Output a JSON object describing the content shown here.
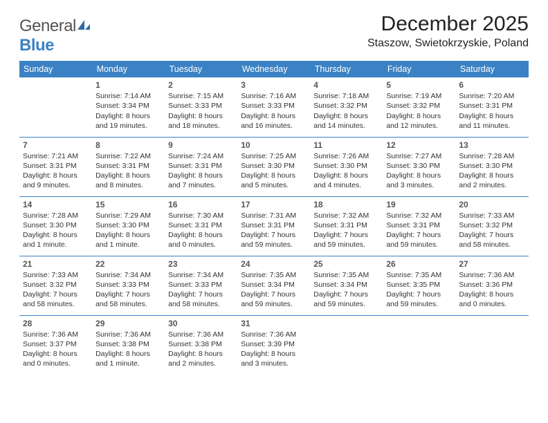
{
  "logo": {
    "text1": "General",
    "text2": "Blue"
  },
  "title": "December 2025",
  "location": "Staszow, Swietokrzyskie, Poland",
  "colors": {
    "accent": "#3b82c4",
    "bg": "#ffffff",
    "text": "#333333"
  },
  "day_headers": [
    "Sunday",
    "Monday",
    "Tuesday",
    "Wednesday",
    "Thursday",
    "Friday",
    "Saturday"
  ],
  "weeks": [
    [
      {
        "blank": true
      },
      {
        "day": "1",
        "sunrise": "Sunrise: 7:14 AM",
        "sunset": "Sunset: 3:34 PM",
        "dl1": "Daylight: 8 hours",
        "dl2": "and 19 minutes."
      },
      {
        "day": "2",
        "sunrise": "Sunrise: 7:15 AM",
        "sunset": "Sunset: 3:33 PM",
        "dl1": "Daylight: 8 hours",
        "dl2": "and 18 minutes."
      },
      {
        "day": "3",
        "sunrise": "Sunrise: 7:16 AM",
        "sunset": "Sunset: 3:33 PM",
        "dl1": "Daylight: 8 hours",
        "dl2": "and 16 minutes."
      },
      {
        "day": "4",
        "sunrise": "Sunrise: 7:18 AM",
        "sunset": "Sunset: 3:32 PM",
        "dl1": "Daylight: 8 hours",
        "dl2": "and 14 minutes."
      },
      {
        "day": "5",
        "sunrise": "Sunrise: 7:19 AM",
        "sunset": "Sunset: 3:32 PM",
        "dl1": "Daylight: 8 hours",
        "dl2": "and 12 minutes."
      },
      {
        "day": "6",
        "sunrise": "Sunrise: 7:20 AM",
        "sunset": "Sunset: 3:31 PM",
        "dl1": "Daylight: 8 hours",
        "dl2": "and 11 minutes."
      }
    ],
    [
      {
        "day": "7",
        "sunrise": "Sunrise: 7:21 AM",
        "sunset": "Sunset: 3:31 PM",
        "dl1": "Daylight: 8 hours",
        "dl2": "and 9 minutes."
      },
      {
        "day": "8",
        "sunrise": "Sunrise: 7:22 AM",
        "sunset": "Sunset: 3:31 PM",
        "dl1": "Daylight: 8 hours",
        "dl2": "and 8 minutes."
      },
      {
        "day": "9",
        "sunrise": "Sunrise: 7:24 AM",
        "sunset": "Sunset: 3:31 PM",
        "dl1": "Daylight: 8 hours",
        "dl2": "and 7 minutes."
      },
      {
        "day": "10",
        "sunrise": "Sunrise: 7:25 AM",
        "sunset": "Sunset: 3:30 PM",
        "dl1": "Daylight: 8 hours",
        "dl2": "and 5 minutes."
      },
      {
        "day": "11",
        "sunrise": "Sunrise: 7:26 AM",
        "sunset": "Sunset: 3:30 PM",
        "dl1": "Daylight: 8 hours",
        "dl2": "and 4 minutes."
      },
      {
        "day": "12",
        "sunrise": "Sunrise: 7:27 AM",
        "sunset": "Sunset: 3:30 PM",
        "dl1": "Daylight: 8 hours",
        "dl2": "and 3 minutes."
      },
      {
        "day": "13",
        "sunrise": "Sunrise: 7:28 AM",
        "sunset": "Sunset: 3:30 PM",
        "dl1": "Daylight: 8 hours",
        "dl2": "and 2 minutes."
      }
    ],
    [
      {
        "day": "14",
        "sunrise": "Sunrise: 7:28 AM",
        "sunset": "Sunset: 3:30 PM",
        "dl1": "Daylight: 8 hours",
        "dl2": "and 1 minute."
      },
      {
        "day": "15",
        "sunrise": "Sunrise: 7:29 AM",
        "sunset": "Sunset: 3:30 PM",
        "dl1": "Daylight: 8 hours",
        "dl2": "and 1 minute."
      },
      {
        "day": "16",
        "sunrise": "Sunrise: 7:30 AM",
        "sunset": "Sunset: 3:31 PM",
        "dl1": "Daylight: 8 hours",
        "dl2": "and 0 minutes."
      },
      {
        "day": "17",
        "sunrise": "Sunrise: 7:31 AM",
        "sunset": "Sunset: 3:31 PM",
        "dl1": "Daylight: 7 hours",
        "dl2": "and 59 minutes."
      },
      {
        "day": "18",
        "sunrise": "Sunrise: 7:32 AM",
        "sunset": "Sunset: 3:31 PM",
        "dl1": "Daylight: 7 hours",
        "dl2": "and 59 minutes."
      },
      {
        "day": "19",
        "sunrise": "Sunrise: 7:32 AM",
        "sunset": "Sunset: 3:31 PM",
        "dl1": "Daylight: 7 hours",
        "dl2": "and 59 minutes."
      },
      {
        "day": "20",
        "sunrise": "Sunrise: 7:33 AM",
        "sunset": "Sunset: 3:32 PM",
        "dl1": "Daylight: 7 hours",
        "dl2": "and 58 minutes."
      }
    ],
    [
      {
        "day": "21",
        "sunrise": "Sunrise: 7:33 AM",
        "sunset": "Sunset: 3:32 PM",
        "dl1": "Daylight: 7 hours",
        "dl2": "and 58 minutes."
      },
      {
        "day": "22",
        "sunrise": "Sunrise: 7:34 AM",
        "sunset": "Sunset: 3:33 PM",
        "dl1": "Daylight: 7 hours",
        "dl2": "and 58 minutes."
      },
      {
        "day": "23",
        "sunrise": "Sunrise: 7:34 AM",
        "sunset": "Sunset: 3:33 PM",
        "dl1": "Daylight: 7 hours",
        "dl2": "and 58 minutes."
      },
      {
        "day": "24",
        "sunrise": "Sunrise: 7:35 AM",
        "sunset": "Sunset: 3:34 PM",
        "dl1": "Daylight: 7 hours",
        "dl2": "and 59 minutes."
      },
      {
        "day": "25",
        "sunrise": "Sunrise: 7:35 AM",
        "sunset": "Sunset: 3:34 PM",
        "dl1": "Daylight: 7 hours",
        "dl2": "and 59 minutes."
      },
      {
        "day": "26",
        "sunrise": "Sunrise: 7:35 AM",
        "sunset": "Sunset: 3:35 PM",
        "dl1": "Daylight: 7 hours",
        "dl2": "and 59 minutes."
      },
      {
        "day": "27",
        "sunrise": "Sunrise: 7:36 AM",
        "sunset": "Sunset: 3:36 PM",
        "dl1": "Daylight: 8 hours",
        "dl2": "and 0 minutes."
      }
    ],
    [
      {
        "day": "28",
        "sunrise": "Sunrise: 7:36 AM",
        "sunset": "Sunset: 3:37 PM",
        "dl1": "Daylight: 8 hours",
        "dl2": "and 0 minutes."
      },
      {
        "day": "29",
        "sunrise": "Sunrise: 7:36 AM",
        "sunset": "Sunset: 3:38 PM",
        "dl1": "Daylight: 8 hours",
        "dl2": "and 1 minute."
      },
      {
        "day": "30",
        "sunrise": "Sunrise: 7:36 AM",
        "sunset": "Sunset: 3:38 PM",
        "dl1": "Daylight: 8 hours",
        "dl2": "and 2 minutes."
      },
      {
        "day": "31",
        "sunrise": "Sunrise: 7:36 AM",
        "sunset": "Sunset: 3:39 PM",
        "dl1": "Daylight: 8 hours",
        "dl2": "and 3 minutes."
      },
      {
        "blank": true
      },
      {
        "blank": true
      },
      {
        "blank": true
      }
    ]
  ]
}
